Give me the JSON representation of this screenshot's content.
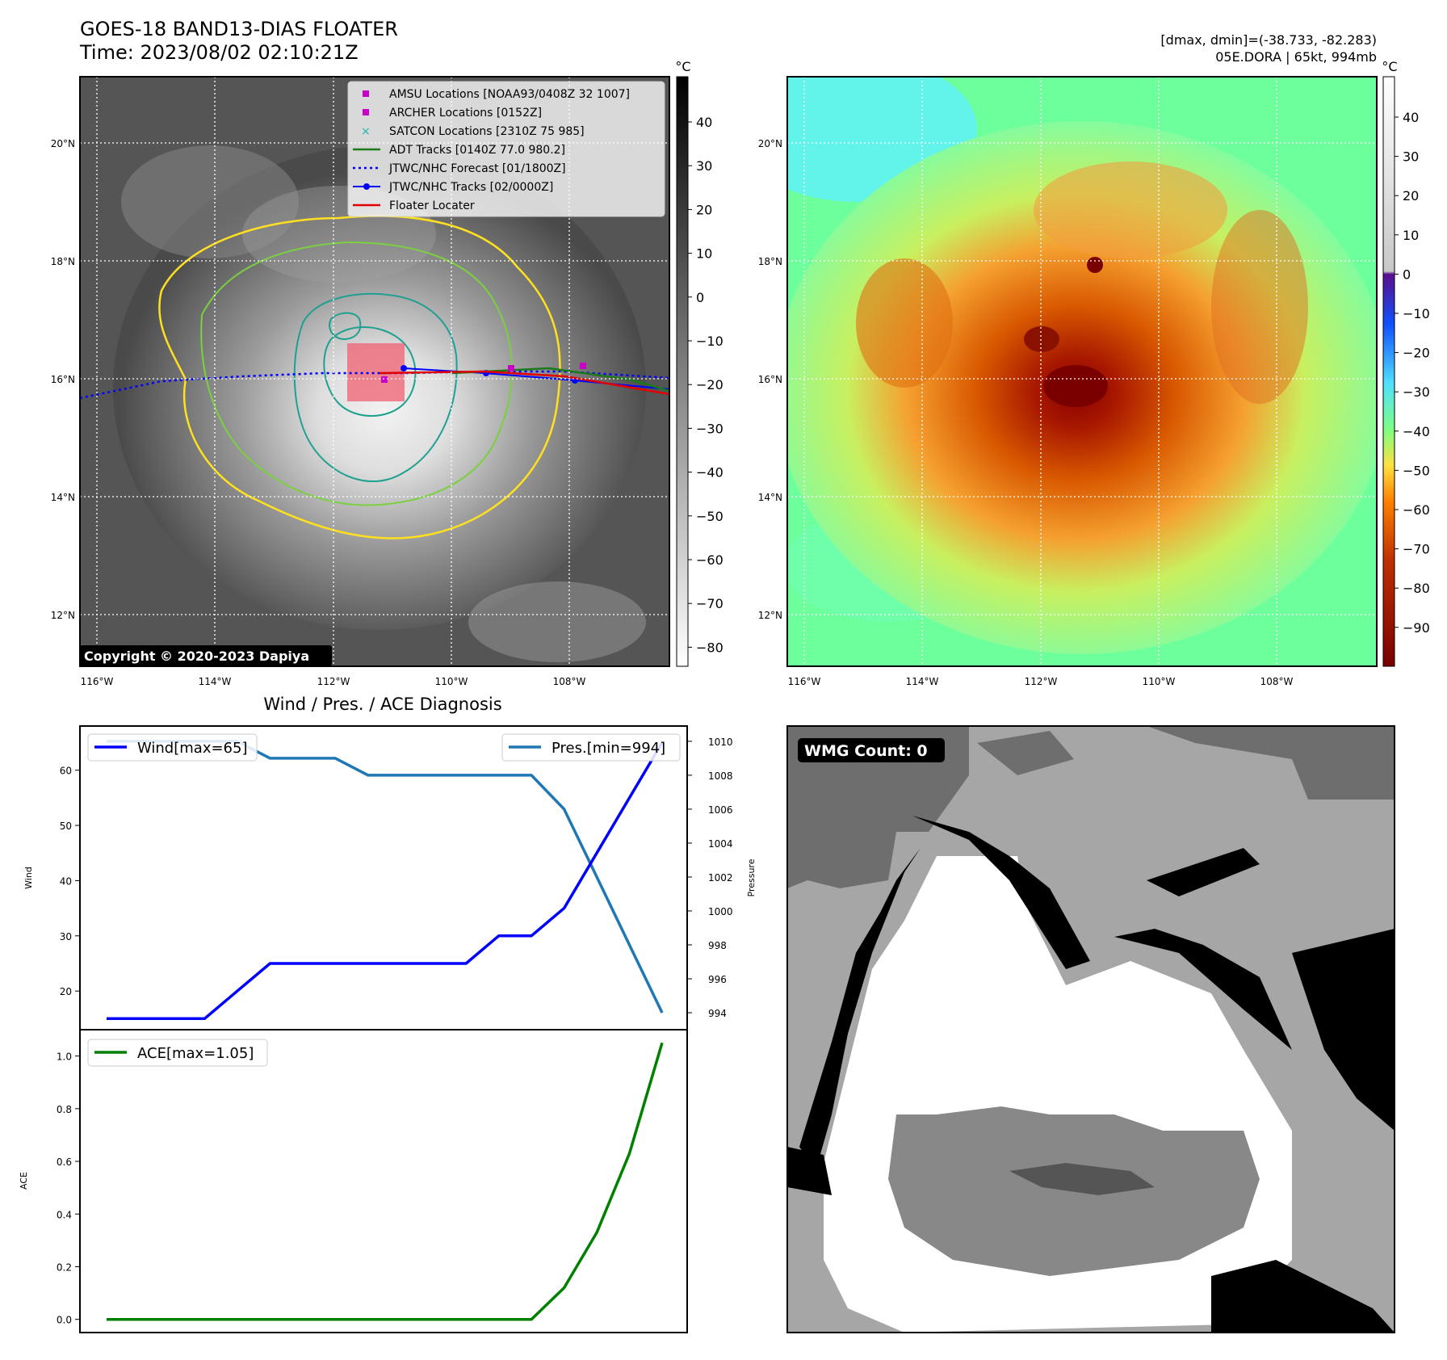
{
  "header": {
    "title": "GOES-18 BAND13-DIAS FLOATER",
    "time": "Time: 2023/08/02 02:10:21Z",
    "dmax_dmin": "[dmax, dmin]=(-38.733, -82.283)",
    "storm": "05E.DORA | 65kt, 994mb"
  },
  "maps": {
    "lat_labels": [
      "20°N",
      "18°N",
      "16°N",
      "14°N",
      "12°N"
    ],
    "lon_labels": [
      "116°W",
      "114°W",
      "112°W",
      "110°W",
      "108°W"
    ],
    "copyright": "Copyright © 2020-2023 Dapiya",
    "legend": [
      {
        "label": "AMSU Locations [NOAA93/0408Z 32 1007]",
        "marker": "square",
        "color": "#c800c8"
      },
      {
        "label": "ARCHER Locations [0152Z]",
        "marker": "square",
        "color": "#c800c8"
      },
      {
        "label": "SATCON Locations [2310Z 75 985]",
        "marker": "x",
        "color": "#20b2aa"
      },
      {
        "label": "ADT Tracks [0140Z 77.0 980.2]",
        "marker": "line",
        "color": "#1a7a1a"
      },
      {
        "label": "JTWC/NHC Forecast [01/1800Z]",
        "marker": "dotted",
        "color": "#0000ff"
      },
      {
        "label": "JTWC/NHC Tracks [02/0000Z]",
        "marker": "line-dot",
        "color": "#0000ff"
      },
      {
        "label": "Floater Locater",
        "marker": "line",
        "color": "#e00000"
      }
    ],
    "colorbar1": {
      "unit": "°C",
      "ticks": [
        "40",
        "30",
        "20",
        "10",
        "0",
        "−10",
        "−20",
        "−30",
        "−40",
        "−50",
        "−60",
        "−70",
        "−80"
      ]
    },
    "colorbar2": {
      "unit": "°C",
      "ticks": [
        "40",
        "30",
        "20",
        "10",
        "0",
        "−10",
        "−20",
        "−30",
        "−40",
        "−50",
        "−60",
        "−70",
        "−80",
        "−90"
      ]
    }
  },
  "wmg": {
    "label": "WMG Count: 0"
  },
  "chart_data": [
    {
      "type": "line",
      "title": "Wind / Pres. / ACE Diagnosis",
      "ylabel": "Wind",
      "ylabel2": "Pressure",
      "ylim": [
        13,
        68
      ],
      "ylim2": [
        993,
        1010.9
      ],
      "yticks": [
        20,
        30,
        40,
        50,
        60
      ],
      "yticks2": [
        994,
        996,
        998,
        1000,
        1002,
        1004,
        1006,
        1008,
        1010
      ],
      "series": [
        {
          "name": "Wind[max=65]",
          "color": "#0000ff",
          "axis": "left",
          "values": [
            15,
            15,
            15,
            15,
            20,
            25,
            25,
            25,
            25,
            25,
            25,
            25,
            30,
            30,
            35,
            45,
            55,
            65
          ]
        },
        {
          "name": "Pres.[min=994]",
          "color": "#1f77b4",
          "axis": "right",
          "values": [
            1010,
            1010,
            1010,
            1010,
            1010,
            1009,
            1009,
            1009,
            1008,
            1008,
            1008,
            1008,
            1008,
            1008,
            1006,
            1002,
            998,
            994
          ]
        }
      ]
    },
    {
      "type": "line",
      "ylabel": "ACE",
      "ylim": [
        -0.05,
        1.1
      ],
      "yticks": [
        0.0,
        0.2,
        0.4,
        0.6,
        0.8,
        1.0
      ],
      "series": [
        {
          "name": "ACE[max=1.05]",
          "color": "#008000",
          "axis": "left",
          "values": [
            0,
            0,
            0,
            0,
            0,
            0,
            0,
            0,
            0,
            0,
            0,
            0,
            0,
            0,
            0.12,
            0.33,
            0.63,
            1.05
          ]
        }
      ]
    }
  ]
}
